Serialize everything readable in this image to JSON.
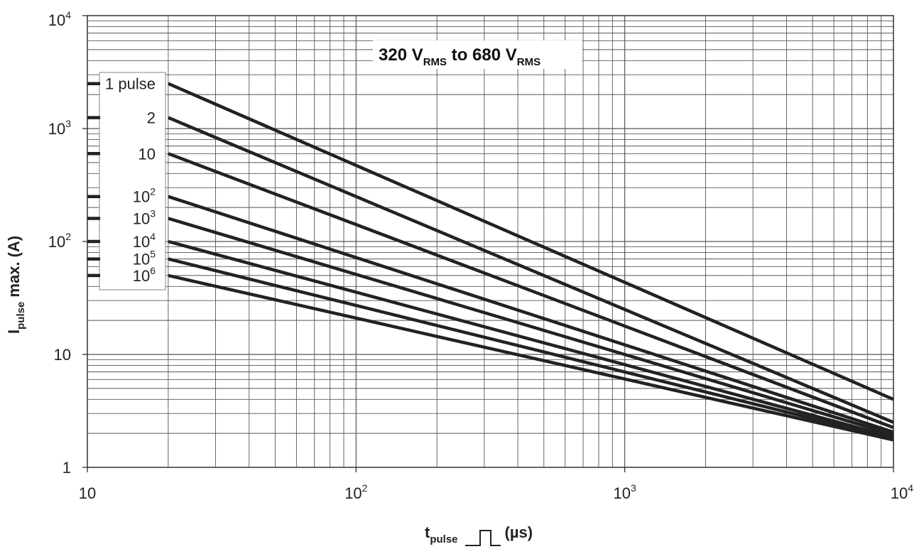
{
  "chart_data": {
    "type": "line",
    "title_main": "320 V",
    "title_sub1": "RMS",
    "title_mid": " to 680 V",
    "title_sub2": "RMS",
    "xlabel_main": "t",
    "xlabel_sub": "pulse",
    "xlabel_unit": "(µs)",
    "ylabel_main": "I",
    "ylabel_sub": "pulse",
    "ylabel_rest": " max. (A)",
    "x_scale": "log",
    "y_scale": "log",
    "xlim": [
      10,
      10000
    ],
    "ylim": [
      1,
      10000
    ],
    "grid": true,
    "x_ticks": [
      {
        "base": "10",
        "exp": ""
      },
      {
        "base": "10",
        "exp": "2"
      },
      {
        "base": "10",
        "exp": "3"
      },
      {
        "base": "10",
        "exp": "4"
      }
    ],
    "y_ticks": [
      {
        "base": "1",
        "exp": ""
      },
      {
        "base": "10",
        "exp": ""
      },
      {
        "base": "10",
        "exp": "2"
      },
      {
        "base": "10",
        "exp": "3"
      },
      {
        "base": "10",
        "exp": "4"
      }
    ],
    "series": [
      {
        "label_base": "1 pulse",
        "label_exp": "",
        "x": [
          20,
          10000
        ],
        "y": [
          2500,
          4.0
        ]
      },
      {
        "label_base": "2",
        "label_exp": "",
        "x": [
          20,
          10000
        ],
        "y": [
          1250,
          2.5
        ]
      },
      {
        "label_base": "10",
        "label_exp": "",
        "x": [
          20,
          10000
        ],
        "y": [
          600,
          2.25
        ]
      },
      {
        "label_base": "10",
        "label_exp": "2",
        "x": [
          20,
          10000
        ],
        "y": [
          250,
          2.05
        ]
      },
      {
        "label_base": "10",
        "label_exp": "3",
        "x": [
          20,
          10000
        ],
        "y": [
          160,
          1.95
        ]
      },
      {
        "label_base": "10",
        "label_exp": "4",
        "x": [
          20,
          10000
        ],
        "y": [
          100,
          1.85
        ]
      },
      {
        "label_base": "10",
        "label_exp": "5",
        "x": [
          20,
          10000
        ],
        "y": [
          70,
          1.8
        ]
      },
      {
        "label_base": "10",
        "label_exp": "6",
        "x": [
          20,
          10000
        ],
        "y": [
          50,
          1.75
        ]
      }
    ]
  }
}
